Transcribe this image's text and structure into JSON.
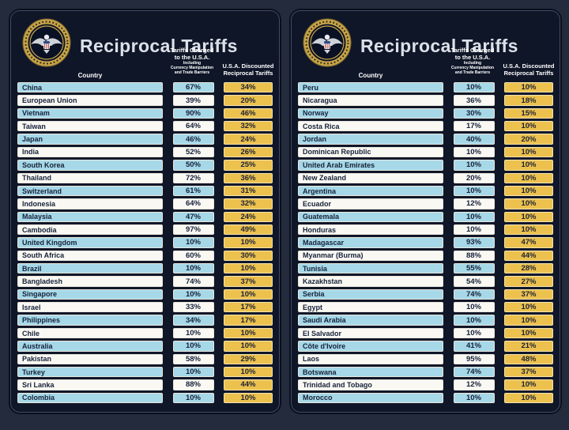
{
  "title": "Reciprocal Tariffs",
  "columns": {
    "country": "Country",
    "charged_line1": "Tariffs Charged",
    "charged_line2": "to the U.S.A.",
    "charged_sub1": "Including",
    "charged_sub2": "Currency Manipulation",
    "charged_sub3": "and Trade Barriers",
    "discounted_line1": "U.S.A. Discounted",
    "discounted_line2": "Reciprocal Tariffs"
  },
  "icons": {
    "seal": "presidential-seal-icon"
  },
  "colors": {
    "background": "#242b3c",
    "panel": "#0f1628",
    "panel_border": "#414b66",
    "row_blue": "#a6d8e8",
    "row_white": "#faf8f3",
    "discount_yellow": "#ecc14d",
    "cell_text": "#152138",
    "title_text": "#dce1e9",
    "header_text": "#ffffff",
    "seal_gold": "#c7a54a"
  },
  "chart_data": {
    "type": "table",
    "title": "Reciprocal Tariffs",
    "columns": [
      "Country",
      "Tariffs Charged to the U.S.A. Including Currency Manipulation and Trade Barriers",
      "U.S.A. Discounted Reciprocal Tariffs"
    ],
    "panel_split": 25,
    "rows": [
      [
        "China",
        "67%",
        "34%"
      ],
      [
        "European Union",
        "39%",
        "20%"
      ],
      [
        "Vietnam",
        "90%",
        "46%"
      ],
      [
        "Taiwan",
        "64%",
        "32%"
      ],
      [
        "Japan",
        "46%",
        "24%"
      ],
      [
        "India",
        "52%",
        "26%"
      ],
      [
        "South Korea",
        "50%",
        "25%"
      ],
      [
        "Thailand",
        "72%",
        "36%"
      ],
      [
        "Switzerland",
        "61%",
        "31%"
      ],
      [
        "Indonesia",
        "64%",
        "32%"
      ],
      [
        "Malaysia",
        "47%",
        "24%"
      ],
      [
        "Cambodia",
        "97%",
        "49%"
      ],
      [
        "United Kingdom",
        "10%",
        "10%"
      ],
      [
        "South Africa",
        "60%",
        "30%"
      ],
      [
        "Brazil",
        "10%",
        "10%"
      ],
      [
        "Bangladesh",
        "74%",
        "37%"
      ],
      [
        "Singapore",
        "10%",
        "10%"
      ],
      [
        "Israel",
        "33%",
        "17%"
      ],
      [
        "Philippines",
        "34%",
        "17%"
      ],
      [
        "Chile",
        "10%",
        "10%"
      ],
      [
        "Australia",
        "10%",
        "10%"
      ],
      [
        "Pakistan",
        "58%",
        "29%"
      ],
      [
        "Turkey",
        "10%",
        "10%"
      ],
      [
        "Sri Lanka",
        "88%",
        "44%"
      ],
      [
        "Colombia",
        "10%",
        "10%"
      ],
      [
        "Peru",
        "10%",
        "10%"
      ],
      [
        "Nicaragua",
        "36%",
        "18%"
      ],
      [
        "Norway",
        "30%",
        "15%"
      ],
      [
        "Costa Rica",
        "17%",
        "10%"
      ],
      [
        "Jordan",
        "40%",
        "20%"
      ],
      [
        "Dominican Republic",
        "10%",
        "10%"
      ],
      [
        "United Arab Emirates",
        "10%",
        "10%"
      ],
      [
        "New Zealand",
        "20%",
        "10%"
      ],
      [
        "Argentina",
        "10%",
        "10%"
      ],
      [
        "Ecuador",
        "12%",
        "10%"
      ],
      [
        "Guatemala",
        "10%",
        "10%"
      ],
      [
        "Honduras",
        "10%",
        "10%"
      ],
      [
        "Madagascar",
        "93%",
        "47%"
      ],
      [
        "Myanmar (Burma)",
        "88%",
        "44%"
      ],
      [
        "Tunisia",
        "55%",
        "28%"
      ],
      [
        "Kazakhstan",
        "54%",
        "27%"
      ],
      [
        "Serbia",
        "74%",
        "37%"
      ],
      [
        "Egypt",
        "10%",
        "10%"
      ],
      [
        "Saudi Arabia",
        "10%",
        "10%"
      ],
      [
        "El Salvador",
        "10%",
        "10%"
      ],
      [
        "Côte d'Ivoire",
        "41%",
        "21%"
      ],
      [
        "Laos",
        "95%",
        "48%"
      ],
      [
        "Botswana",
        "74%",
        "37%"
      ],
      [
        "Trinidad and Tobago",
        "12%",
        "10%"
      ],
      [
        "Morocco",
        "10%",
        "10%"
      ]
    ]
  }
}
